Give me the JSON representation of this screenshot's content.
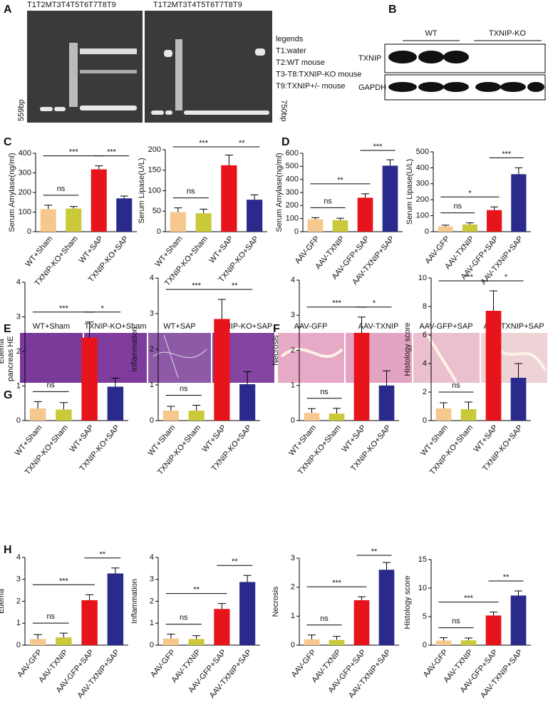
{
  "panel_labels": [
    "A",
    "B",
    "C",
    "D",
    "E",
    "F",
    "G",
    "H"
  ],
  "gel": {
    "lane_headers": [
      "T1T2MT3T4T5T6T7T8T9",
      "T1T2MT3T4T5T6T7T8T9"
    ],
    "legends": [
      "legends",
      "T1:water",
      "T2:WT mouse",
      "T3-T8:TXNIP-KO mouse",
      "T9:TXNIP+/- mouse"
    ],
    "size_left": "559bp",
    "size_right": "750bp"
  },
  "blot": {
    "groups": [
      "WT",
      "TXNIP-KO"
    ],
    "rows": [
      "TXNIP",
      "GAPDH"
    ]
  },
  "histology": {
    "side_label": "pancreas HE",
    "e_labels": [
      "WT+Sham",
      "TXNIP-KO+Sham",
      "WT+SAP",
      "TXNIP-KO+SAP"
    ],
    "f_labels": [
      "AAV-GFP",
      "AAV-TXNIP",
      "AAV-GFP+SAP",
      "AAV-TXNIP+SAP"
    ]
  },
  "chart_data": [
    {
      "type": "bar",
      "ylabel": "Serum Amylase(ng/ml)",
      "categories": [
        "WT+Sham",
        "TXNIP-KO+Sham",
        "WT+SAP",
        "TXNIP-KO+SAP"
      ],
      "values": [
        115,
        118,
        318,
        170
      ],
      "errors": [
        20,
        10,
        18,
        12
      ],
      "colors": [
        "#f6c88e",
        "#c9c93a",
        "#e8141b",
        "#2a2a8c"
      ],
      "ylim": [
        0,
        400
      ],
      "yticks": [
        0,
        100,
        200,
        300,
        400
      ],
      "annotations": [
        "ns",
        "***",
        "***"
      ]
    },
    {
      "type": "bar",
      "ylabel": "Serum Lipase(U/L)",
      "categories": [
        "WT+Sham",
        "TXNIP-KO+Sham",
        "WT+SAP",
        "TXNIP-KO+SAP"
      ],
      "values": [
        48,
        45,
        162,
        78
      ],
      "errors": [
        10,
        10,
        25,
        12
      ],
      "colors": [
        "#f6c88e",
        "#c9c93a",
        "#e8141b",
        "#2a2a8c"
      ],
      "ylim": [
        0,
        200
      ],
      "yticks": [
        0,
        50,
        100,
        150,
        200
      ],
      "annotations": [
        "ns",
        "***",
        "**"
      ]
    },
    {
      "type": "bar",
      "ylabel": "Serum Amylase(ng/ml)",
      "categories": [
        "AAV-GFP",
        "AAV-TXNIP",
        "AAV-GFP+SAP",
        "AAV-TXNIP+SAP"
      ],
      "values": [
        95,
        88,
        260,
        505
      ],
      "errors": [
        12,
        15,
        30,
        45
      ],
      "colors": [
        "#f6c88e",
        "#c9c93a",
        "#e8141b",
        "#2a2a8c"
      ],
      "ylim": [
        0,
        600
      ],
      "yticks": [
        0,
        100,
        200,
        300,
        400,
        500,
        600
      ],
      "annotations": [
        "ns",
        "**",
        "***"
      ]
    },
    {
      "type": "bar",
      "ylabel": "Serum Lipase(U/L)",
      "categories": [
        "AAV-GFP",
        "AAV-TXNIP",
        "AAV-GFP+SAP",
        "AAV-TXNIP+SAP"
      ],
      "values": [
        33,
        45,
        135,
        360
      ],
      "errors": [
        8,
        10,
        20,
        40
      ],
      "colors": [
        "#f6c88e",
        "#c9c93a",
        "#e8141b",
        "#2a2a8c"
      ],
      "ylim": [
        0,
        500
      ],
      "yticks": [
        0,
        100,
        200,
        300,
        400,
        500
      ],
      "annotations": [
        "ns",
        "*",
        "***"
      ]
    },
    {
      "type": "bar",
      "ylabel": "Edema",
      "categories": [
        "WT+Sham",
        "TXNIP-KO+Sham",
        "WT+SAP",
        "TXNIP-KO+SAP"
      ],
      "values": [
        0.35,
        0.32,
        2.4,
        0.98
      ],
      "errors": [
        0.2,
        0.2,
        0.45,
        0.25
      ],
      "colors": [
        "#f6c88e",
        "#c9c93a",
        "#e8141b",
        "#2a2a8c"
      ],
      "ylim": [
        0,
        4
      ],
      "yticks": [
        0,
        1,
        2,
        3,
        4
      ],
      "annotations": [
        "ns",
        "***",
        "*"
      ]
    },
    {
      "type": "bar",
      "ylabel": "Inflammation",
      "categories": [
        "WT+Sham",
        "TXNIP-KO+Sham",
        "WT+SAP",
        "TXNIP-KO+SAP"
      ],
      "values": [
        0.28,
        0.28,
        2.85,
        1.02
      ],
      "errors": [
        0.12,
        0.15,
        0.55,
        0.35
      ],
      "colors": [
        "#f6c88e",
        "#c9c93a",
        "#e8141b",
        "#2a2a8c"
      ],
      "ylim": [
        0,
        4
      ],
      "yticks": [
        0,
        1,
        2,
        3,
        4
      ],
      "annotations": [
        "ns",
        "***",
        "**"
      ]
    },
    {
      "type": "bar",
      "ylabel": "Necrosis",
      "categories": [
        "WT+Sham",
        "TXNIP-KO+Sham",
        "WT+SAP",
        "TXNIP-KO+SAP"
      ],
      "values": [
        0.22,
        0.2,
        2.5,
        1.0
      ],
      "errors": [
        0.12,
        0.15,
        0.45,
        0.42
      ],
      "colors": [
        "#f6c88e",
        "#c9c93a",
        "#e8141b",
        "#2a2a8c"
      ],
      "ylim": [
        0,
        4
      ],
      "yticks": [
        0,
        1,
        2,
        3,
        4
      ],
      "annotations": [
        "ns",
        "***",
        "*"
      ]
    },
    {
      "type": "bar",
      "ylabel": "Histology score",
      "categories": [
        "WT+Sham",
        "TXNIP-KO+Sham",
        "WT+SAP",
        "TXNIP-KO+SAP"
      ],
      "values": [
        0.85,
        0.8,
        7.7,
        3.0
      ],
      "errors": [
        0.4,
        0.5,
        1.4,
        1.0
      ],
      "colors": [
        "#f6c88e",
        "#c9c93a",
        "#e8141b",
        "#2a2a8c"
      ],
      "ylim": [
        0,
        10
      ],
      "yticks": [
        0,
        2,
        4,
        6,
        8,
        10
      ],
      "annotations": [
        "ns",
        "***",
        "*"
      ]
    },
    {
      "type": "bar",
      "ylabel": "Edema",
      "categories": [
        "AAV-GFP",
        "AAV-TXNIP",
        "AAV-GFP+SAP",
        "AAV-TXNIP+SAP"
      ],
      "values": [
        0.28,
        0.35,
        2.05,
        3.27
      ],
      "errors": [
        0.2,
        0.2,
        0.25,
        0.25
      ],
      "colors": [
        "#f6c88e",
        "#c9c93a",
        "#e8141b",
        "#2a2a8c"
      ],
      "ylim": [
        0,
        4
      ],
      "yticks": [
        0,
        1,
        2,
        3,
        4
      ],
      "annotations": [
        "ns",
        "***",
        "**"
      ]
    },
    {
      "type": "bar",
      "ylabel": "Inflammation",
      "categories": [
        "AAV-GFP",
        "AAV-TXNIP",
        "AAV-GFP+SAP",
        "AAV-TXNIP+SAP"
      ],
      "values": [
        0.3,
        0.28,
        1.65,
        2.88
      ],
      "errors": [
        0.2,
        0.15,
        0.25,
        0.3
      ],
      "colors": [
        "#f6c88e",
        "#c9c93a",
        "#e8141b",
        "#2a2a8c"
      ],
      "ylim": [
        0,
        4
      ],
      "yticks": [
        0,
        1,
        2,
        3,
        4
      ],
      "annotations": [
        "ns",
        "**",
        "**"
      ]
    },
    {
      "type": "bar",
      "ylabel": "Necrosis",
      "categories": [
        "AAV-GFP",
        "AAV-TXNIP",
        "AAV-GFP+SAP",
        "AAV-TXNIP+SAP"
      ],
      "values": [
        0.2,
        0.18,
        1.55,
        2.6
      ],
      "errors": [
        0.15,
        0.12,
        0.12,
        0.25
      ],
      "colors": [
        "#f6c88e",
        "#c9c93a",
        "#e8141b",
        "#2a2a8c"
      ],
      "ylim": [
        0,
        3
      ],
      "yticks": [
        0,
        1,
        2,
        3
      ],
      "annotations": [
        "ns",
        "***",
        "**"
      ]
    },
    {
      "type": "bar",
      "ylabel": "Histology score",
      "categories": [
        "AAV-GFP",
        "AAV-TXNIP",
        "AAV-GFP+SAP",
        "AAV-TXNIP+SAP"
      ],
      "values": [
        0.8,
        0.85,
        5.2,
        8.7
      ],
      "errors": [
        0.5,
        0.4,
        0.6,
        0.8
      ],
      "colors": [
        "#f6c88e",
        "#c9c93a",
        "#e8141b",
        "#2a2a8c"
      ],
      "ylim": [
        0,
        15
      ],
      "yticks": [
        0,
        5,
        10,
        15
      ],
      "annotations": [
        "ns",
        "***",
        "**"
      ]
    }
  ]
}
